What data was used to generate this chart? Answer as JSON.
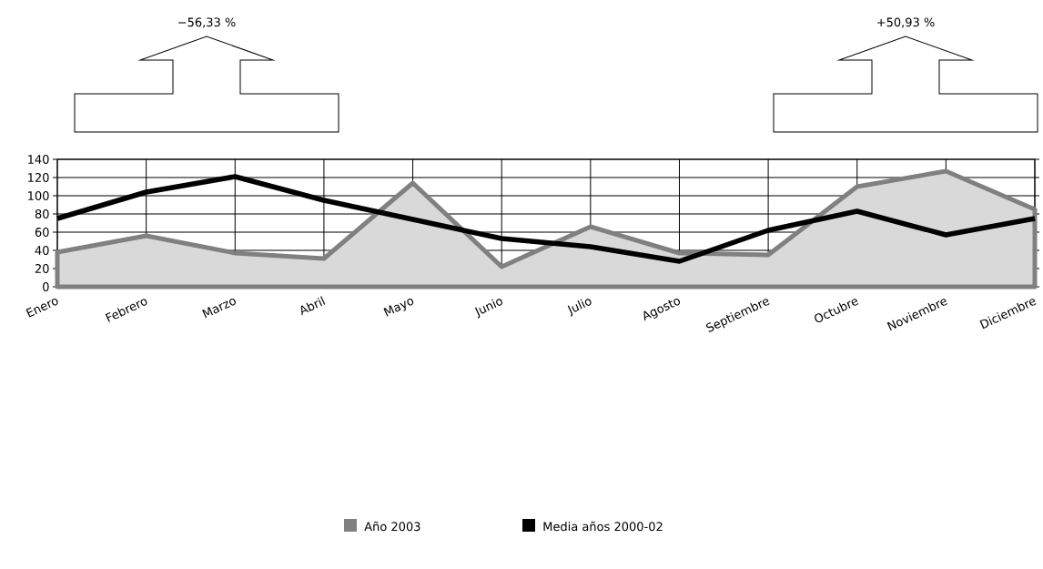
{
  "chart_data": {
    "type": "line",
    "categories": [
      "Enero",
      "Febrero",
      "Marzo",
      "Abril",
      "Mayo",
      "Junio",
      "Julio",
      "Agosto",
      "Septiembre",
      "Octubre",
      "Noviembre",
      "Diciembre"
    ],
    "series": [
      {
        "name": "Año 2003",
        "type": "area",
        "color": "#808080",
        "values": [
          38,
          56,
          37,
          31,
          114,
          22,
          66,
          37,
          35,
          110,
          127,
          85
        ]
      },
      {
        "name": "Media años 2000-02",
        "type": "line",
        "color": "#000000",
        "values": [
          75,
          104,
          121,
          95,
          74,
          53,
          44,
          28,
          62,
          83,
          57,
          75
        ]
      }
    ],
    "ylim": [
      0,
      140
    ],
    "yticks": [
      0,
      20,
      40,
      60,
      80,
      100,
      120,
      140
    ],
    "grid": true,
    "legend": "bottom",
    "annotations": [
      "−56,33 %",
      "+50,93 %"
    ]
  }
}
